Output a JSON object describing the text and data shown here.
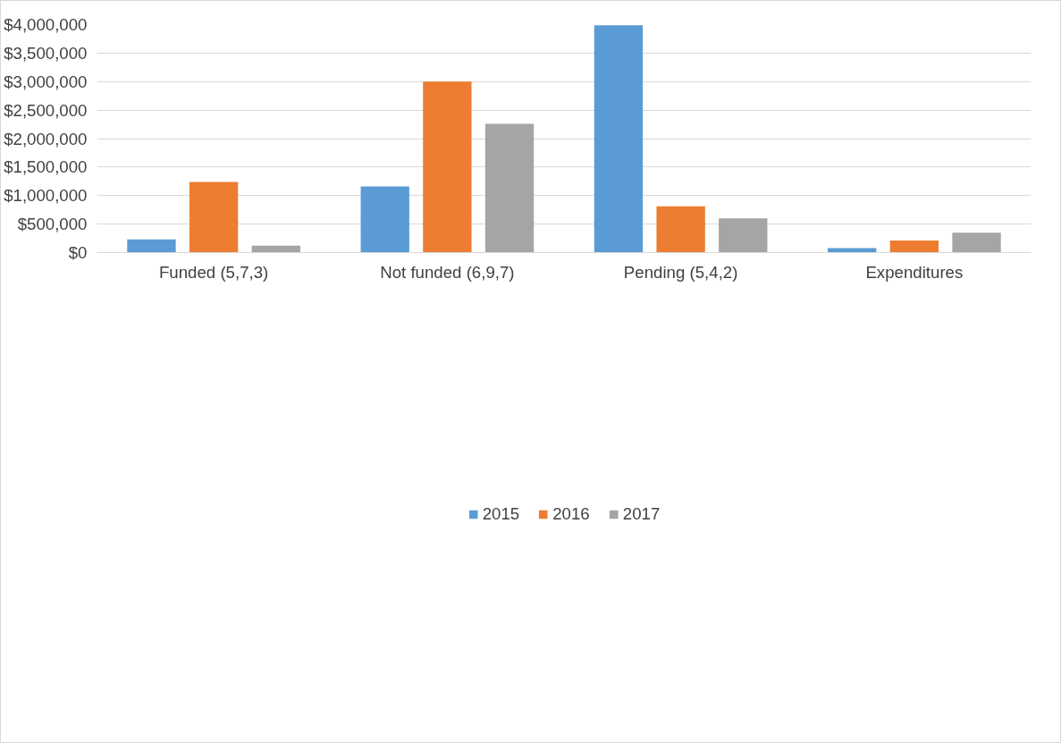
{
  "chart_data": {
    "type": "bar",
    "categories": [
      "Funded (5,7,3)",
      "Not funded (6,9,7)",
      "Pending (5,4,2)",
      "Expenditures"
    ],
    "series": [
      {
        "name": "2015",
        "color": "#5b9bd5",
        "values": [
          230000,
          1160000,
          3990000,
          80000
        ]
      },
      {
        "name": "2016",
        "color": "#ed7d31",
        "values": [
          1240000,
          3000000,
          810000,
          210000
        ]
      },
      {
        "name": "2017",
        "color": "#a5a5a5",
        "values": [
          120000,
          2260000,
          600000,
          350000
        ]
      }
    ],
    "ylim": [
      0,
      4000000
    ],
    "yticks": [
      {
        "value": 0,
        "label": "$0"
      },
      {
        "value": 500000,
        "label": "$500,000"
      },
      {
        "value": 1000000,
        "label": "$1,000,000"
      },
      {
        "value": 1500000,
        "label": "$1,500,000"
      },
      {
        "value": 2000000,
        "label": "$2,000,000"
      },
      {
        "value": 2500000,
        "label": "$2,500,000"
      },
      {
        "value": 3000000,
        "label": "$3,000,000"
      },
      {
        "value": 3500000,
        "label": "$3,500,000"
      },
      {
        "value": 4000000,
        "label": "$4,000,000"
      }
    ],
    "grid": "y",
    "legend": "bottom"
  }
}
